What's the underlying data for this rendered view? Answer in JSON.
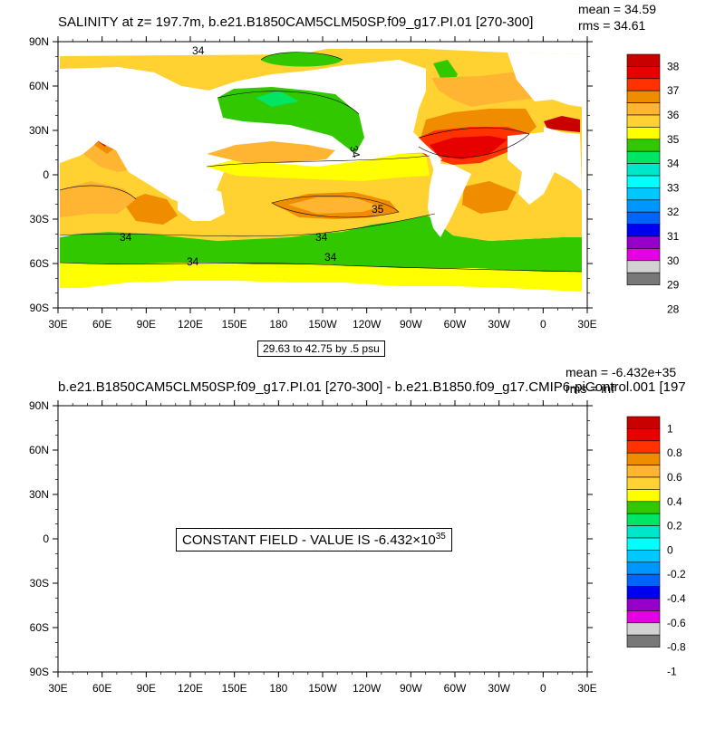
{
  "panel1": {
    "title": "SALINITY at z= 197.7m, b.e21.B1850CAM5CLM50SP.f09_g17.PI.01 [270-300]",
    "mean": "mean = 34.59",
    "rms": "rms = 34.61",
    "contour_note": "29.63 to 42.75 by .5 psu",
    "contour_labels": [
      "34",
      "34",
      "35",
      "34",
      "34",
      "34",
      "34"
    ],
    "colorbar_labels": [
      "38",
      "37",
      "36",
      "35",
      "34",
      "33",
      "32",
      "31",
      "30",
      "29",
      "28"
    ]
  },
  "panel2": {
    "title": "b.e21.B1850CAM5CLM50SP.f09_g17.PI.01 [270-300] - b.e21.B1850.f09_g17.CMIP6-piControl.001 [197",
    "mean": "mean = -6.432e+35",
    "rms": "rms = inf",
    "constant_prefix": "CONSTANT FIELD - VALUE IS -6.432×10",
    "constant_exp": "35",
    "colorbar_labels": [
      "1",
      "0.8",
      "0.6",
      "0.4",
      "0.2",
      "0",
      "-0.2",
      "-0.4",
      "-0.6",
      "-0.8",
      "-1"
    ]
  },
  "axes": {
    "lat_labels": [
      "90N",
      "60N",
      "30N",
      "0",
      "30S",
      "60S",
      "90S"
    ],
    "lon_labels": [
      "30E",
      "60E",
      "90E",
      "120E",
      "150E",
      "180",
      "150W",
      "120W",
      "90W",
      "60W",
      "30W",
      "0",
      "30E"
    ]
  },
  "colorbar_colors": [
    "#c80000",
    "#e60000",
    "#ff3200",
    "#f08c00",
    "#ffb432",
    "#ffd232",
    "#ffff00",
    "#32c800",
    "#00e664",
    "#00e6c8",
    "#00ffff",
    "#00c8ff",
    "#0096ff",
    "#0064ff",
    "#0000f0",
    "#9600c8",
    "#e600e6",
    "#d2d2d2",
    "#787878"
  ]
}
